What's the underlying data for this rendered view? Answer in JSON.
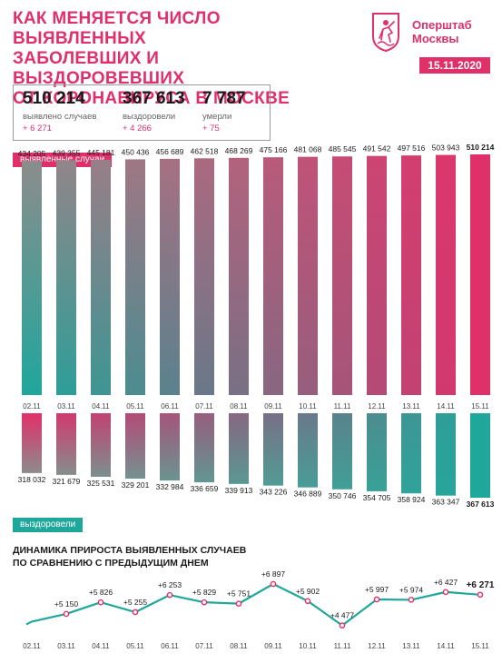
{
  "header": {
    "title_lines": [
      "КАК МЕНЯЕТСЯ ЧИСЛО ВЫЯВЛЕННЫХ",
      "ЗАБОЛЕВШИХ И ВЫЗДОРОВЕВШИХ",
      "ОТ КОРОНАВИРУСА В МОСКВЕ"
    ],
    "logo_lines": [
      "Оперштаб",
      "Москвы"
    ],
    "date": "15.11.2020"
  },
  "summary": {
    "cases": {
      "value": "510 214",
      "label": "выявлено случаев",
      "delta": "+ 6 271"
    },
    "recovered": {
      "value": "367 613",
      "label": "выздоровели",
      "delta": "+ 4 266"
    },
    "deaths": {
      "value": "7 787",
      "label": "умерли",
      "delta": "+ 75"
    }
  },
  "labels": {
    "cases_tag": "выявленные случаи",
    "recovered_tag": "выздоровели",
    "trend_title_lines": [
      "ДИНАМИКА ПРИРОСТА ВЫЯВЛЕННЫХ СЛУЧАЕВ",
      "ПО СРАВНЕНИЮ С ПРЕДЫДУЩИМ ДНЕМ"
    ]
  },
  "colors": {
    "pink": "#e0306a",
    "teal": "#1fa79c",
    "gray": "#8c8c8c",
    "text": "#1a1a1a"
  },
  "chart_data": [
    {
      "type": "bar",
      "categories": [
        "02.11",
        "03.11",
        "04.11",
        "05.11",
        "06.11",
        "07.11",
        "08.11",
        "09.11",
        "10.11",
        "11.11",
        "12.11",
        "13.11",
        "14.11",
        "15.11"
      ],
      "value_labels": [
        "434 205",
        "439 355",
        "445 181",
        "450 436",
        "456 689",
        "462 518",
        "468 269",
        "475 166",
        "481 068",
        "485 545",
        "491 542",
        "497 516",
        "503 943",
        "510 214"
      ],
      "values": [
        434205,
        439355,
        445181,
        450436,
        456689,
        462518,
        468269,
        475166,
        481068,
        485545,
        491542,
        497516,
        503943,
        510214
      ],
      "series": [
        {
          "name": "выявленные случаи",
          "values": [
            434205,
            439355,
            445181,
            450436,
            456689,
            462518,
            468269,
            475166,
            481068,
            485545,
            491542,
            497516,
            503943,
            510214
          ]
        }
      ]
    },
    {
      "type": "bar",
      "categories": [
        "02.11",
        "03.11",
        "04.11",
        "05.11",
        "06.11",
        "07.11",
        "08.11",
        "09.11",
        "10.11",
        "11.11",
        "12.11",
        "13.11",
        "14.11",
        "15.11"
      ],
      "value_labels": [
        "318 032",
        "321 679",
        "325 531",
        "329 201",
        "332 984",
        "336 659",
        "339 913",
        "343 226",
        "346 889",
        "350 746",
        "354 705",
        "358 924",
        "363 347",
        "367 613"
      ],
      "values": [
        318032,
        321679,
        325531,
        329201,
        332984,
        336659,
        339913,
        343226,
        346889,
        350746,
        354705,
        358924,
        363347,
        367613
      ],
      "series": [
        {
          "name": "выздоровели",
          "values": [
            318032,
            321679,
            325531,
            329201,
            332984,
            336659,
            339913,
            343226,
            346889,
            350746,
            354705,
            358924,
            363347,
            367613
          ]
        }
      ]
    },
    {
      "type": "line",
      "title": "ДИНАМИКА ПРИРОСТА ВЫЯВЛЕННЫХ СЛУЧАЕВ ПО СРАВНЕНИЮ С ПРЕДЫДУЩИМ ДНЕМ",
      "x": [
        "02.11",
        "03.11",
        "04.11",
        "05.11",
        "06.11",
        "07.11",
        "08.11",
        "09.11",
        "10.11",
        "11.11",
        "12.11",
        "13.11",
        "14.11",
        "15.11"
      ],
      "value_labels": [
        "",
        "+5 150",
        "+5 826",
        "+5 255",
        "+6 253",
        "+5 829",
        "+5 751",
        "+6 897",
        "+5 902",
        "+4 477",
        "+5 997",
        "+5 974",
        "+6 427",
        "+6 271"
      ],
      "values": [
        4700,
        5150,
        5826,
        5255,
        6253,
        5829,
        5751,
        6897,
        5902,
        4477,
        5997,
        5974,
        6427,
        6271
      ]
    }
  ]
}
